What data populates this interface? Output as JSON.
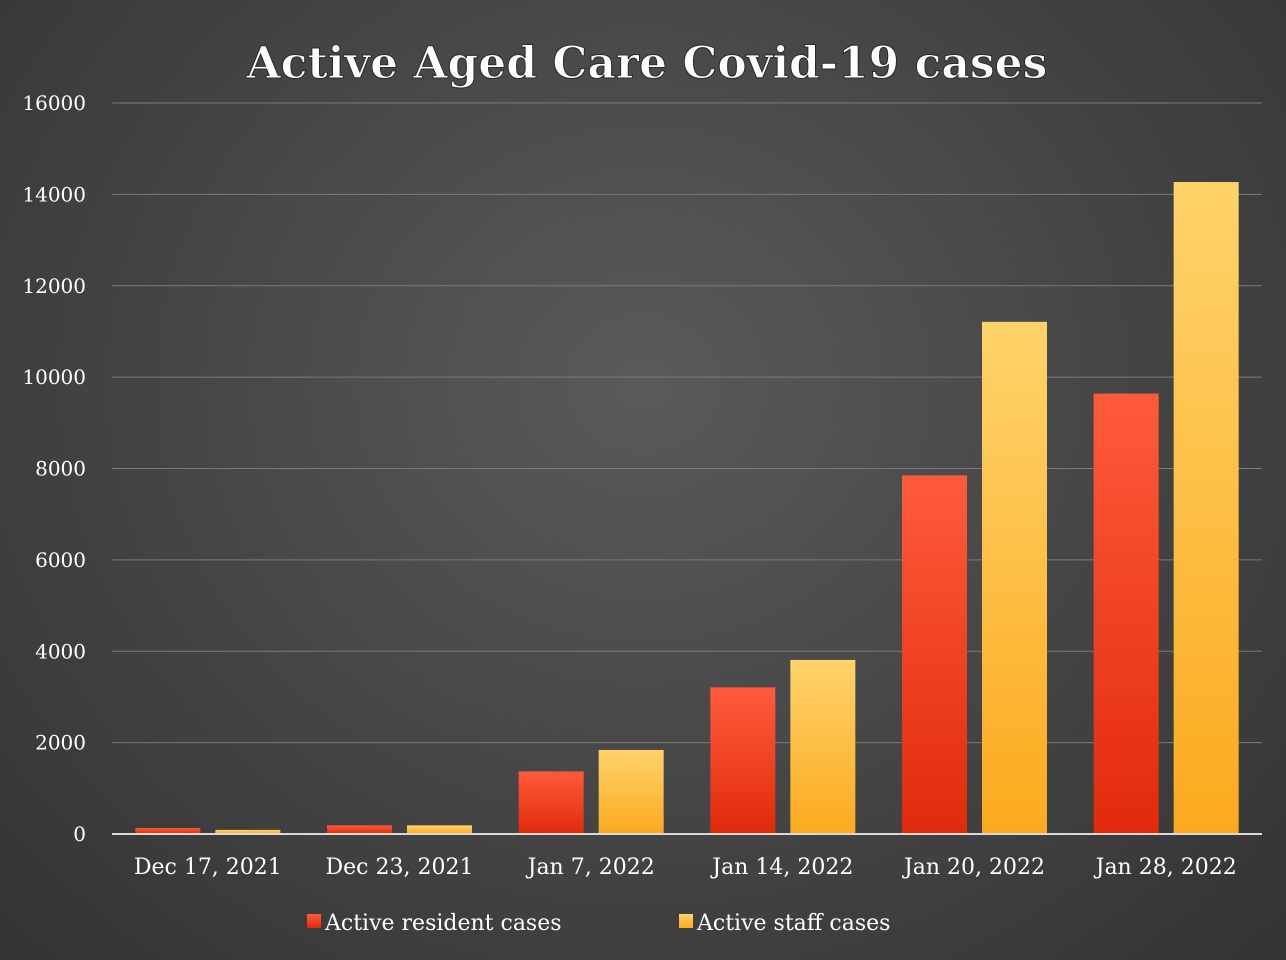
{
  "chart_data": {
    "type": "bar",
    "title": "Active Aged Care Covid-19 cases",
    "xlabel": "",
    "ylabel": "",
    "ylim": [
      0,
      16000
    ],
    "y_ticks": [
      "0",
      "2000",
      "4000",
      "6000",
      "8000",
      "10000",
      "12000",
      "14000",
      "16000"
    ],
    "grid": true,
    "legend_position": "bottom",
    "categories": [
      "Dec 17, 2021",
      "Dec 23, 2021",
      "Jan 7, 2022",
      "Jan 14, 2022",
      "Jan 20, 2022",
      "Jan 28, 2022"
    ],
    "series": [
      {
        "name": "Active resident cases",
        "values": [
          130,
          190,
          1370,
          3210,
          7850,
          9640
        ],
        "color_top": "#ff5a3c",
        "color_bottom": "#e12a0c"
      },
      {
        "name": "Active staff cases",
        "values": [
          90,
          190,
          1840,
          3810,
          11210,
          14270
        ],
        "color_top": "#ffd36b",
        "color_bottom": "#fbaa1e"
      }
    ]
  }
}
